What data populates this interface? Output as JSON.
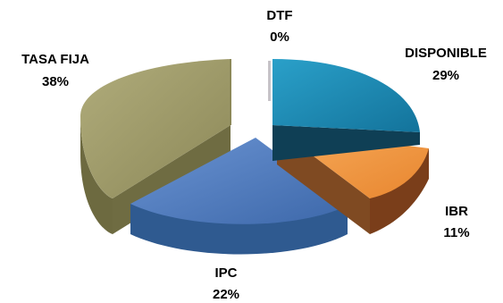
{
  "chart_data": {
    "type": "pie",
    "style": "3d-exploded",
    "title": "",
    "slices": [
      {
        "label": "DISPONIBLE",
        "value": 29,
        "value_text": "29%",
        "color": "#1E88B4"
      },
      {
        "label": "IBR",
        "value": 11,
        "value_text": "11%",
        "color": "#F39A44"
      },
      {
        "label": "IPC",
        "value": 22,
        "value_text": "22%",
        "color": "#4E7DC1"
      },
      {
        "label": "TASA FIJA",
        "value": 38,
        "value_text": "38%",
        "color": "#A19D6B"
      },
      {
        "label": "DTF",
        "value": 0,
        "value_text": "0%",
        "color": "#8B4A8C"
      }
    ],
    "legend": "none"
  }
}
